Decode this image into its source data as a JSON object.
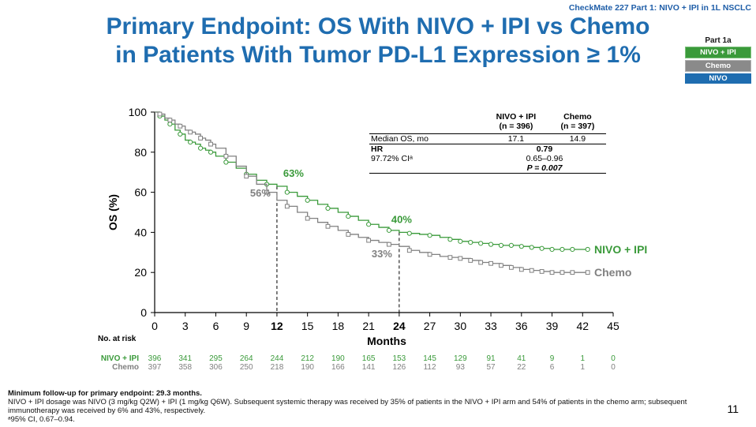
{
  "header_tag": "CheckMate 227 Part 1: NIVO + IPI in 1L NSCLC",
  "title_line1": "Primary Endpoint: OS With NIVO + IPI vs Chemo",
  "title_line2": "in Patients With Tumor PD-L1 Expression ≥ 1%",
  "part_legend": {
    "caption": "Part 1a",
    "items": [
      "NIVO + IPI",
      "Chemo",
      "NIVO"
    ],
    "colors": [
      "#3a9a3a",
      "#8a8a8a",
      "#1f6db0"
    ]
  },
  "stats_table": {
    "col1_header": "NIVO + IPI",
    "col1_n": "(n = 396)",
    "col2_header": "Chemo",
    "col2_n": "(n = 397)",
    "row1_label": "Median OS, mo",
    "row1_v1": "17.1",
    "row1_v2": "14.9",
    "hr_label": "HR",
    "hr_value": "0.79",
    "ci_label": "97.72% CIᵃ",
    "ci_value": "0.65–0.96",
    "p_value": "P = 0.007"
  },
  "risk_table": {
    "title": "No. at risk",
    "rows": [
      {
        "label": "NIVO + IPI",
        "color": "#3a9a3a",
        "values": [
          "396",
          "341",
          "295",
          "264",
          "244",
          "212",
          "190",
          "165",
          "153",
          "145",
          "129",
          "91",
          "41",
          "9",
          "1",
          "0"
        ]
      },
      {
        "label": "Chemo",
        "color": "#808080",
        "values": [
          "397",
          "358",
          "306",
          "250",
          "218",
          "190",
          "166",
          "141",
          "126",
          "112",
          "93",
          "57",
          "22",
          "6",
          "1",
          "0"
        ]
      }
    ]
  },
  "footnote": {
    "line1": "Minimum follow-up for primary endpoint: 29.3 months.",
    "line2": "NIVO + IPI dosage was NIVO (3 mg/kg Q2W) + IPI (1 mg/kg Q6W). Subsequent systemic therapy was received by 35% of patients in the NIVO + IPI arm and 54% of patients in the chemo arm; subsequent immunotherapy was received by 6% and 43%, respectively.",
    "line3": "ᵃ95% CI, 0.67–0.94."
  },
  "page_number": "11",
  "chart_data": {
    "type": "line",
    "title": "",
    "xlabel": "Months",
    "ylabel": "OS (%)",
    "xlim": [
      0,
      45
    ],
    "ylim": [
      0,
      100
    ],
    "xticks": [
      0,
      3,
      6,
      9,
      12,
      15,
      18,
      21,
      24,
      27,
      30,
      33,
      36,
      39,
      42,
      45
    ],
    "yticks": [
      0,
      20,
      40,
      60,
      80,
      100
    ],
    "bold_xticks": [
      12,
      24
    ],
    "series": [
      {
        "name": "NIVO + IPI",
        "color": "#3a9a3a",
        "marker": "circle",
        "x": [
          0,
          0.5,
          1,
          1.5,
          2,
          2.5,
          3,
          3.5,
          4,
          4.5,
          5,
          5.5,
          6,
          7,
          8,
          9,
          10,
          11,
          12,
          13,
          14,
          15,
          16,
          17,
          18,
          19,
          20,
          21,
          22,
          23,
          24,
          25,
          26,
          27,
          28,
          29,
          30,
          31,
          32,
          33,
          34,
          35,
          36,
          37,
          38,
          39,
          40,
          41,
          42.5
        ],
        "y": [
          100,
          98,
          96,
          94,
          91,
          89,
          86,
          85,
          84,
          82,
          81,
          80,
          78,
          75,
          72,
          69,
          66,
          64,
          63,
          60,
          58,
          56,
          54,
          52,
          50,
          48,
          46,
          44,
          42.5,
          41,
          40,
          39.5,
          39,
          38.5,
          37.5,
          36.5,
          35.5,
          35,
          34.5,
          34,
          33.5,
          33.5,
          33,
          32.5,
          32,
          31.5,
          31.5,
          31.5,
          31.5
        ]
      },
      {
        "name": "Chemo",
        "color": "#808080",
        "marker": "square",
        "x": [
          0,
          0.5,
          1,
          1.5,
          2,
          2.5,
          3,
          3.5,
          4,
          4.5,
          5,
          5.5,
          6,
          7,
          8,
          9,
          10,
          11,
          12,
          13,
          14,
          15,
          16,
          17,
          18,
          19,
          20,
          21,
          22,
          23,
          24,
          25,
          26,
          27,
          28,
          29,
          30,
          31,
          32,
          33,
          34,
          35,
          36,
          37,
          38,
          39,
          40,
          41,
          42.5
        ],
        "y": [
          100,
          99,
          97,
          96,
          94,
          93,
          91,
          90,
          89,
          87,
          86,
          84,
          82,
          78,
          73,
          68,
          64,
          60,
          56,
          53,
          50,
          47,
          45,
          43,
          41,
          39,
          37.5,
          36,
          35,
          34,
          33,
          31,
          30,
          29,
          28,
          27.5,
          27,
          26,
          25,
          24.5,
          23.5,
          22.5,
          21.5,
          21,
          20.5,
          20,
          20,
          20,
          20
        ]
      }
    ],
    "annotations": [
      {
        "text": "63%",
        "x": 12,
        "y": 63,
        "color": "#3a9a3a"
      },
      {
        "text": "56%",
        "x": 12,
        "y": 56,
        "color": "#808080"
      },
      {
        "text": "40%",
        "x": 24,
        "y": 40,
        "color": "#3a9a3a"
      },
      {
        "text": "33%",
        "x": 24,
        "y": 33,
        "color": "#808080"
      }
    ],
    "curve_labels": [
      {
        "text": "NIVO + IPI",
        "color": "#3a9a3a"
      },
      {
        "text": "Chemo",
        "color": "#808080"
      }
    ]
  }
}
